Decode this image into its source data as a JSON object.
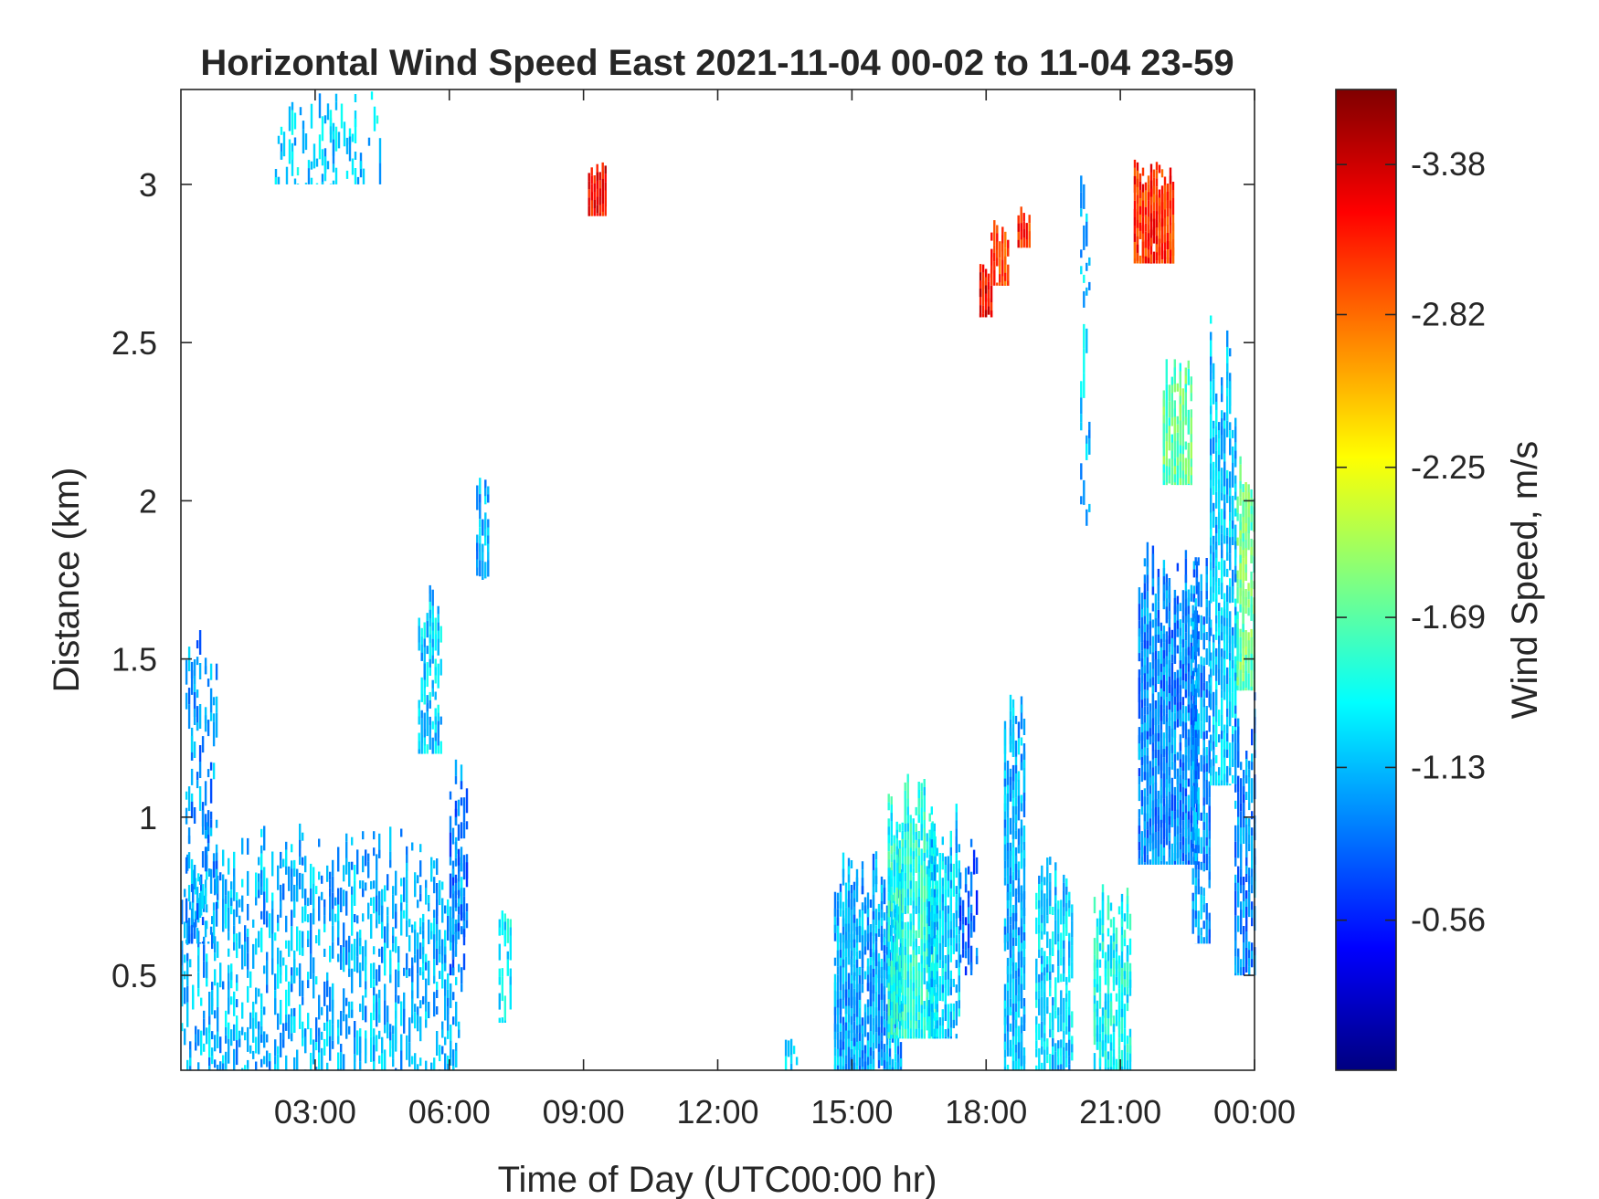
{
  "chart_data": {
    "type": "heatmap",
    "title": "Horizontal Wind Speed East 2021-11-04 00-02 to 11-04 23-59",
    "xlabel": "Time of Day (UTC00:00 hr)",
    "ylabel": "Distance (km)",
    "xlim_hours": [
      0,
      24
    ],
    "ylim_km": [
      0.2,
      3.3
    ],
    "x_ticks": [
      {
        "hour": 3,
        "label": "03:00"
      },
      {
        "hour": 6,
        "label": "06:00"
      },
      {
        "hour": 9,
        "label": "09:00"
      },
      {
        "hour": 12,
        "label": "12:00"
      },
      {
        "hour": 15,
        "label": "15:00"
      },
      {
        "hour": 18,
        "label": "18:00"
      },
      {
        "hour": 21,
        "label": "21:00"
      },
      {
        "hour": 24,
        "label": "00:00"
      }
    ],
    "y_ticks": [
      {
        "km": 0.5,
        "label": "0.5"
      },
      {
        "km": 1,
        "label": "1"
      },
      {
        "km": 1.5,
        "label": "1.5"
      },
      {
        "km": 2,
        "label": "2"
      },
      {
        "km": 2.5,
        "label": "2.5"
      },
      {
        "km": 3,
        "label": "3"
      }
    ],
    "colorbar": {
      "label": "Wind Speed, m/s",
      "colormap": "jet",
      "range": [
        -3.66,
        0.0
      ],
      "color_for_most_negative": "#800000",
      "color_for_least_negative": "#00008f",
      "ticks": [
        {
          "value": -3.38,
          "label": "-3.38"
        },
        {
          "value": -2.82,
          "label": "-2.82"
        },
        {
          "value": -2.25,
          "label": "-2.25"
        },
        {
          "value": -1.69,
          "label": "-1.69"
        },
        {
          "value": -1.13,
          "label": "-1.13"
        },
        {
          "value": -0.56,
          "label": "-0.56"
        }
      ]
    },
    "grid": false,
    "regions": [
      {
        "t0": 0.0,
        "t1": 6.3,
        "d0": 0.2,
        "d1": 1.0,
        "v": -1.1,
        "density": 0.28
      },
      {
        "t0": 0.1,
        "t1": 0.8,
        "d0": 0.6,
        "d1": 1.7,
        "v": -1.0,
        "density": 0.25
      },
      {
        "t0": 2.1,
        "t1": 4.5,
        "d0": 3.0,
        "d1": 3.3,
        "v": -1.2,
        "density": 0.2
      },
      {
        "t0": 5.3,
        "t1": 5.8,
        "d0": 1.2,
        "d1": 1.75,
        "v": -1.2,
        "density": 0.5
      },
      {
        "t0": 6.0,
        "t1": 6.4,
        "d0": 0.5,
        "d1": 1.2,
        "v": -0.9,
        "density": 0.35
      },
      {
        "t0": 6.6,
        "t1": 6.9,
        "d0": 1.75,
        "d1": 2.1,
        "v": -1.1,
        "density": 0.35
      },
      {
        "t0": 7.1,
        "t1": 7.4,
        "d0": 0.35,
        "d1": 0.8,
        "v": -1.3,
        "density": 0.3
      },
      {
        "t0": 9.1,
        "t1": 9.5,
        "d0": 2.9,
        "d1": 3.07,
        "v": -3.2,
        "density": 0.9
      },
      {
        "t0": 13.5,
        "t1": 14.0,
        "d0": 0.2,
        "d1": 0.3,
        "v": -1.2,
        "density": 0.3
      },
      {
        "t0": 14.6,
        "t1": 16.1,
        "d0": 0.2,
        "d1": 0.9,
        "v": -1.05,
        "density": 0.75
      },
      {
        "t0": 15.8,
        "t1": 16.9,
        "d0": 0.3,
        "d1": 1.15,
        "v": -1.45,
        "density": 0.85
      },
      {
        "t0": 16.7,
        "t1": 17.4,
        "d0": 0.3,
        "d1": 1.05,
        "v": -1.2,
        "density": 0.65
      },
      {
        "t0": 17.4,
        "t1": 17.8,
        "d0": 0.5,
        "d1": 1.0,
        "v": -0.8,
        "density": 0.3
      },
      {
        "t0": 17.85,
        "t1": 18.15,
        "d0": 2.58,
        "d1": 2.75,
        "v": -3.25,
        "density": 0.85
      },
      {
        "t0": 18.1,
        "t1": 18.5,
        "d0": 2.68,
        "d1": 2.9,
        "v": -2.95,
        "density": 0.85
      },
      {
        "t0": 18.7,
        "t1": 18.95,
        "d0": 2.8,
        "d1": 2.93,
        "v": -3.05,
        "density": 0.8
      },
      {
        "t0": 18.4,
        "t1": 18.85,
        "d0": 0.2,
        "d1": 1.4,
        "v": -1.1,
        "density": 0.6
      },
      {
        "t0": 19.1,
        "t1": 19.9,
        "d0": 0.2,
        "d1": 0.9,
        "v": -1.2,
        "density": 0.55
      },
      {
        "t0": 20.1,
        "t1": 20.3,
        "d0": 1.9,
        "d1": 3.15,
        "v": -1.15,
        "density": 0.22
      },
      {
        "t0": 20.4,
        "t1": 21.2,
        "d0": 0.2,
        "d1": 0.8,
        "v": -1.4,
        "density": 0.6
      },
      {
        "t0": 21.3,
        "t1": 22.2,
        "d0": 2.75,
        "d1": 3.08,
        "v": -3.05,
        "density": 0.9
      },
      {
        "t0": 21.95,
        "t1": 22.6,
        "d0": 2.05,
        "d1": 2.45,
        "v": -1.7,
        "density": 0.65
      },
      {
        "t0": 21.4,
        "t1": 22.7,
        "d0": 0.85,
        "d1": 1.9,
        "v": -0.95,
        "density": 0.7
      },
      {
        "t0": 22.6,
        "t1": 23.0,
        "d0": 0.6,
        "d1": 1.85,
        "v": -1.0,
        "density": 0.55
      },
      {
        "t0": 23.0,
        "t1": 23.6,
        "d0": 1.1,
        "d1": 2.6,
        "v": -1.15,
        "density": 0.6
      },
      {
        "t0": 23.6,
        "t1": 24.0,
        "d0": 1.4,
        "d1": 2.2,
        "v": -1.75,
        "density": 0.75
      },
      {
        "t0": 23.55,
        "t1": 24.0,
        "d0": 0.5,
        "d1": 1.4,
        "v": -0.95,
        "density": 0.5
      }
    ]
  }
}
